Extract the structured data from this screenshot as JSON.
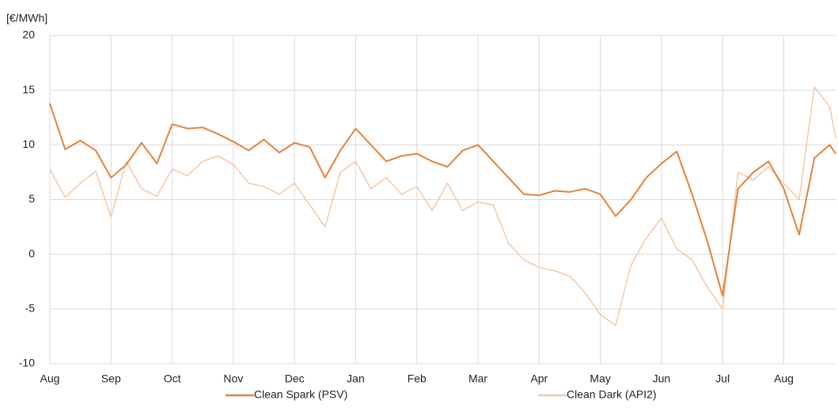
{
  "chart_data": {
    "type": "line",
    "y_unit_label": "[€/MWh]",
    "xlim": [
      0,
      12.86
    ],
    "xticks": [
      {
        "value": 0,
        "label": "Aug"
      },
      {
        "value": 1,
        "label": "Sep"
      },
      {
        "value": 2,
        "label": "Oct"
      },
      {
        "value": 3,
        "label": "Nov"
      },
      {
        "value": 4,
        "label": "Dec"
      },
      {
        "value": 5,
        "label": "Jan"
      },
      {
        "value": 6,
        "label": "Feb"
      },
      {
        "value": 7,
        "label": "Mar"
      },
      {
        "value": 8,
        "label": "Apr"
      },
      {
        "value": 9,
        "label": "May"
      },
      {
        "value": 10,
        "label": "Jun"
      },
      {
        "value": 11,
        "label": "Jul"
      },
      {
        "value": 12,
        "label": "Aug"
      }
    ],
    "ylim": [
      -10,
      20
    ],
    "yticks": [
      -10,
      -5,
      0,
      5,
      10,
      15,
      20
    ],
    "grid": true,
    "x": [
      0,
      0.25,
      0.5,
      0.75,
      1,
      1.25,
      1.5,
      1.75,
      2,
      2.25,
      2.5,
      2.75,
      3,
      3.25,
      3.5,
      3.75,
      4,
      4.25,
      4.5,
      4.75,
      5,
      5.25,
      5.5,
      5.75,
      6,
      6.25,
      6.5,
      6.75,
      7,
      7.25,
      7.5,
      7.75,
      8,
      8.25,
      8.5,
      8.75,
      9,
      9.25,
      9.5,
      9.75,
      10,
      10.25,
      10.5,
      10.75,
      11,
      11.25,
      11.5,
      11.75,
      12,
      12.25,
      12.5,
      12.75,
      12.85
    ],
    "series": [
      {
        "name": "Clean Spark (PSV)",
        "color": "#e4823c",
        "width": 2,
        "values": [
          13.8,
          9.6,
          10.4,
          9.5,
          7.0,
          8.2,
          10.2,
          8.3,
          11.9,
          11.5,
          11.6,
          11.0,
          10.3,
          9.5,
          10.5,
          9.3,
          10.2,
          9.8,
          7.0,
          9.5,
          11.5,
          10.0,
          8.5,
          9.0,
          9.2,
          8.5,
          8.0,
          9.5,
          10.0,
          8.5,
          7.0,
          5.5,
          5.4,
          5.8,
          5.7,
          6.0,
          5.5,
          3.5,
          5.0,
          7.0,
          8.3,
          9.4,
          5.5,
          1.2,
          -3.8,
          6.0,
          7.5,
          8.5,
          6.0,
          1.8,
          8.8,
          10.0,
          9.2
        ]
      },
      {
        "name": "Clean Dark (API2)",
        "color": "#f6c7a4",
        "width": 1.5,
        "values": [
          7.8,
          5.2,
          6.5,
          7.6,
          3.4,
          8.5,
          6.0,
          5.3,
          7.8,
          7.2,
          8.5,
          9.0,
          8.2,
          6.5,
          6.2,
          5.5,
          6.5,
          4.5,
          2.5,
          7.5,
          8.5,
          6.0,
          7.0,
          5.5,
          6.2,
          4.0,
          6.5,
          4.0,
          4.8,
          4.5,
          1.0,
          -0.5,
          -1.2,
          -1.5,
          -2.0,
          -3.5,
          -5.5,
          -6.5,
          -1.0,
          1.5,
          3.3,
          0.5,
          -0.5,
          -3.0,
          -5.0,
          7.5,
          6.8,
          8.0,
          6.5,
          5.0,
          15.3,
          13.5,
          10.6
        ]
      }
    ]
  }
}
